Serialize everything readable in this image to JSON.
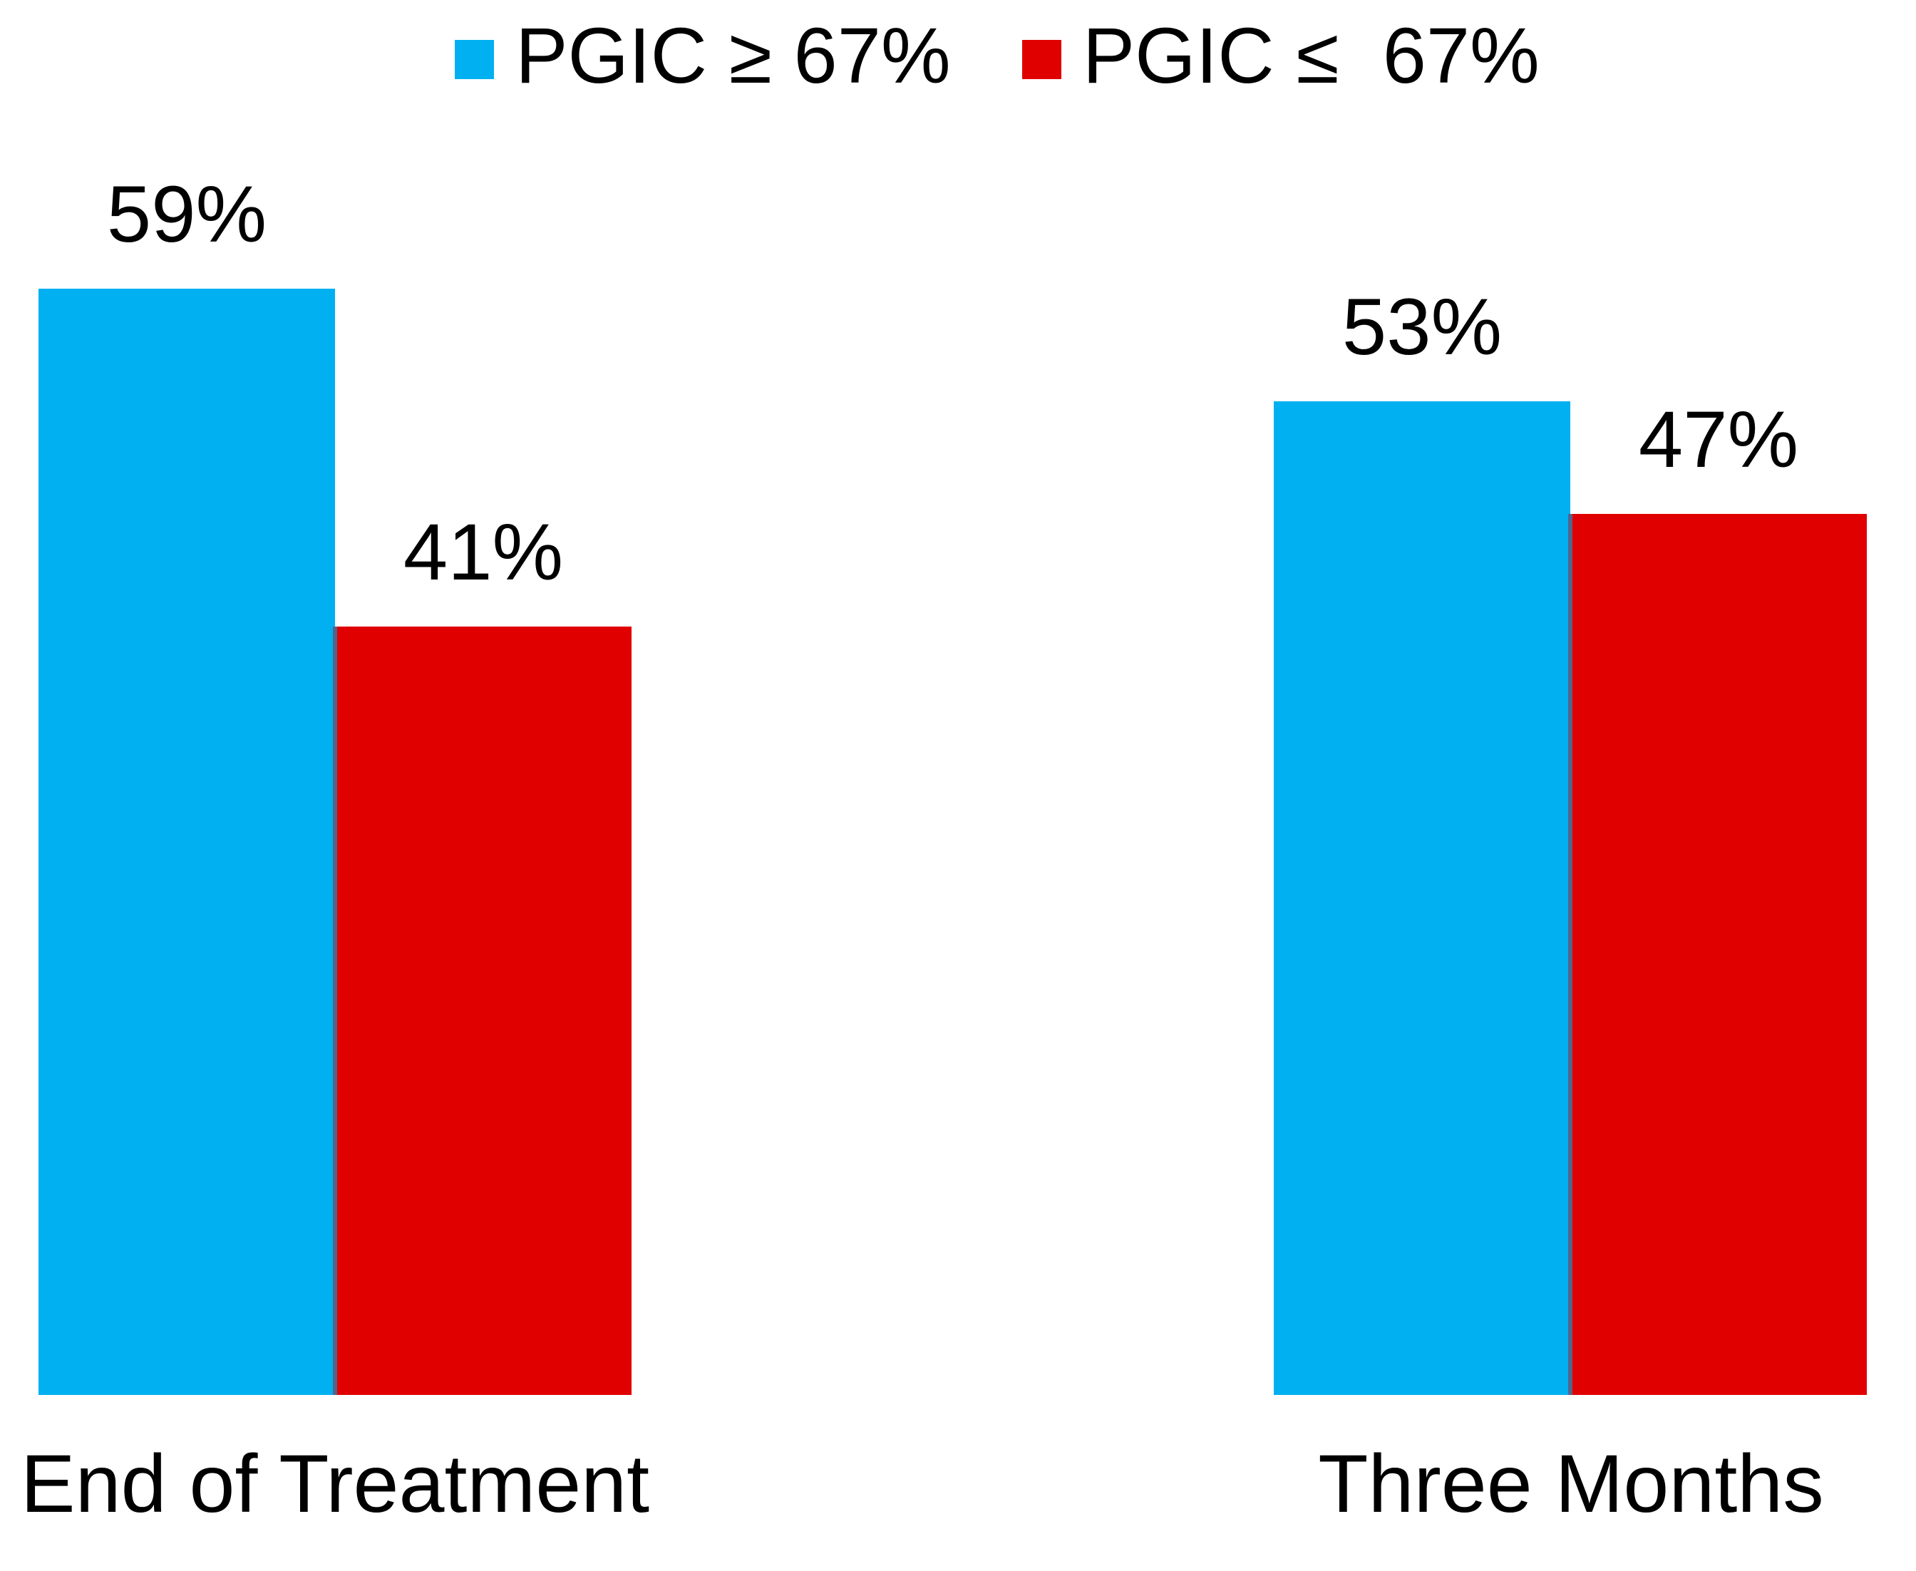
{
  "chart_data": {
    "type": "bar",
    "title": "",
    "categories": [
      "End of Treatment",
      "Three Months"
    ],
    "series": [
      {
        "name": "PGIC ≥ 67%",
        "color": "#00B0F0",
        "values": [
          59,
          53
        ]
      },
      {
        "name": "PGIC ≤  67%",
        "color": "#E00000",
        "values": [
          41,
          47
        ]
      }
    ],
    "bar_value_labels": [
      "59%",
      "41%",
      "53%",
      "47%"
    ],
    "value_suffix": "%",
    "ylim": [
      0,
      75
    ],
    "grid": false,
    "axes_visible": false,
    "legend_position": "top-center",
    "text_color": "#000000",
    "background_color": "#FFFFFF"
  }
}
